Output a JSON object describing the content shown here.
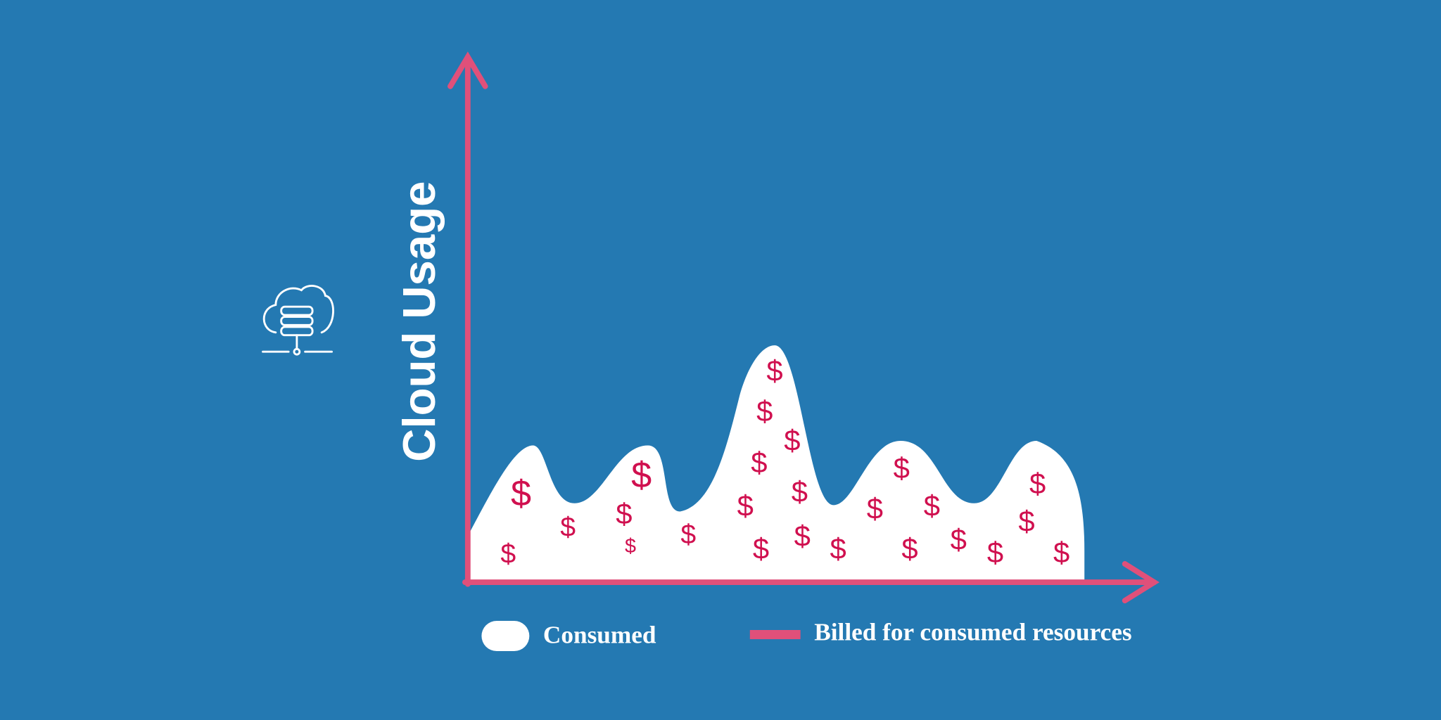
{
  "diagram": {
    "axis_label": "Cloud Usage",
    "symbol": "$",
    "legend": {
      "consumed": "Consumed",
      "billed": "Billed for consumed resources"
    }
  }
}
